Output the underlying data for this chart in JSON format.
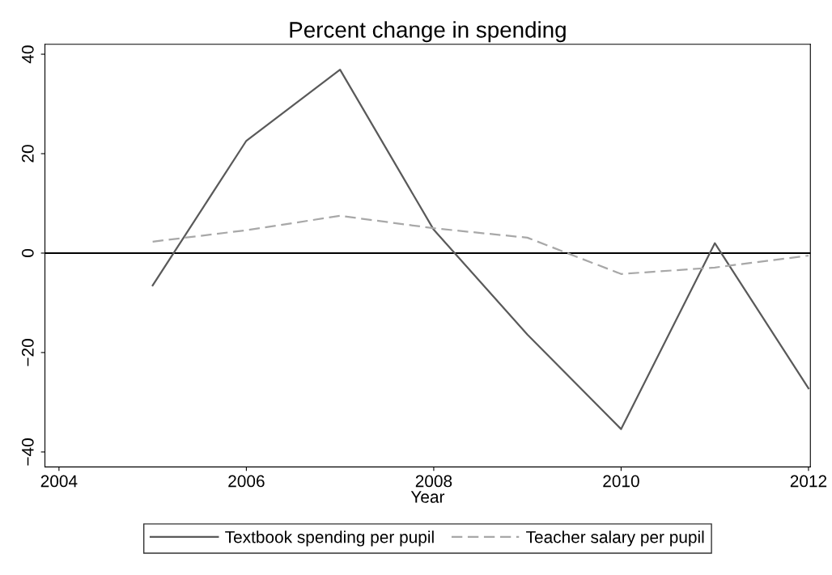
{
  "chart_data": {
    "type": "line",
    "title": "Percent change in spending",
    "xlabel": "Year",
    "x": [
      2005,
      2006,
      2007,
      2008,
      2009,
      2010,
      2011,
      2012
    ],
    "series": [
      {
        "name": "Textbook spending per pupil",
        "color": "#5a5a5a",
        "line_style": "solid",
        "values": [
          -6.5,
          22.6,
          36.9,
          4.7,
          -16.4,
          -35.4,
          2.0,
          -27.2
        ]
      },
      {
        "name": "Teacher salary per pupil",
        "color": "#a8a8a8",
        "line_style": "dashed",
        "values": [
          2.3,
          4.6,
          7.5,
          5.0,
          3.1,
          -4.2,
          -2.9,
          -0.5
        ]
      }
    ],
    "xlim": [
      2003.85,
      2012.02
    ],
    "xticks": [
      2004,
      2006,
      2008,
      2010,
      2012
    ],
    "ylim": [
      -43,
      42
    ],
    "yticks": [
      -40,
      -20,
      0,
      20,
      40
    ],
    "ref_lines": [
      {
        "axis": "y",
        "value": 0,
        "color": "#000000",
        "line_style": "solid"
      }
    ],
    "grid": false,
    "legend": "bottom",
    "marker": "none"
  }
}
